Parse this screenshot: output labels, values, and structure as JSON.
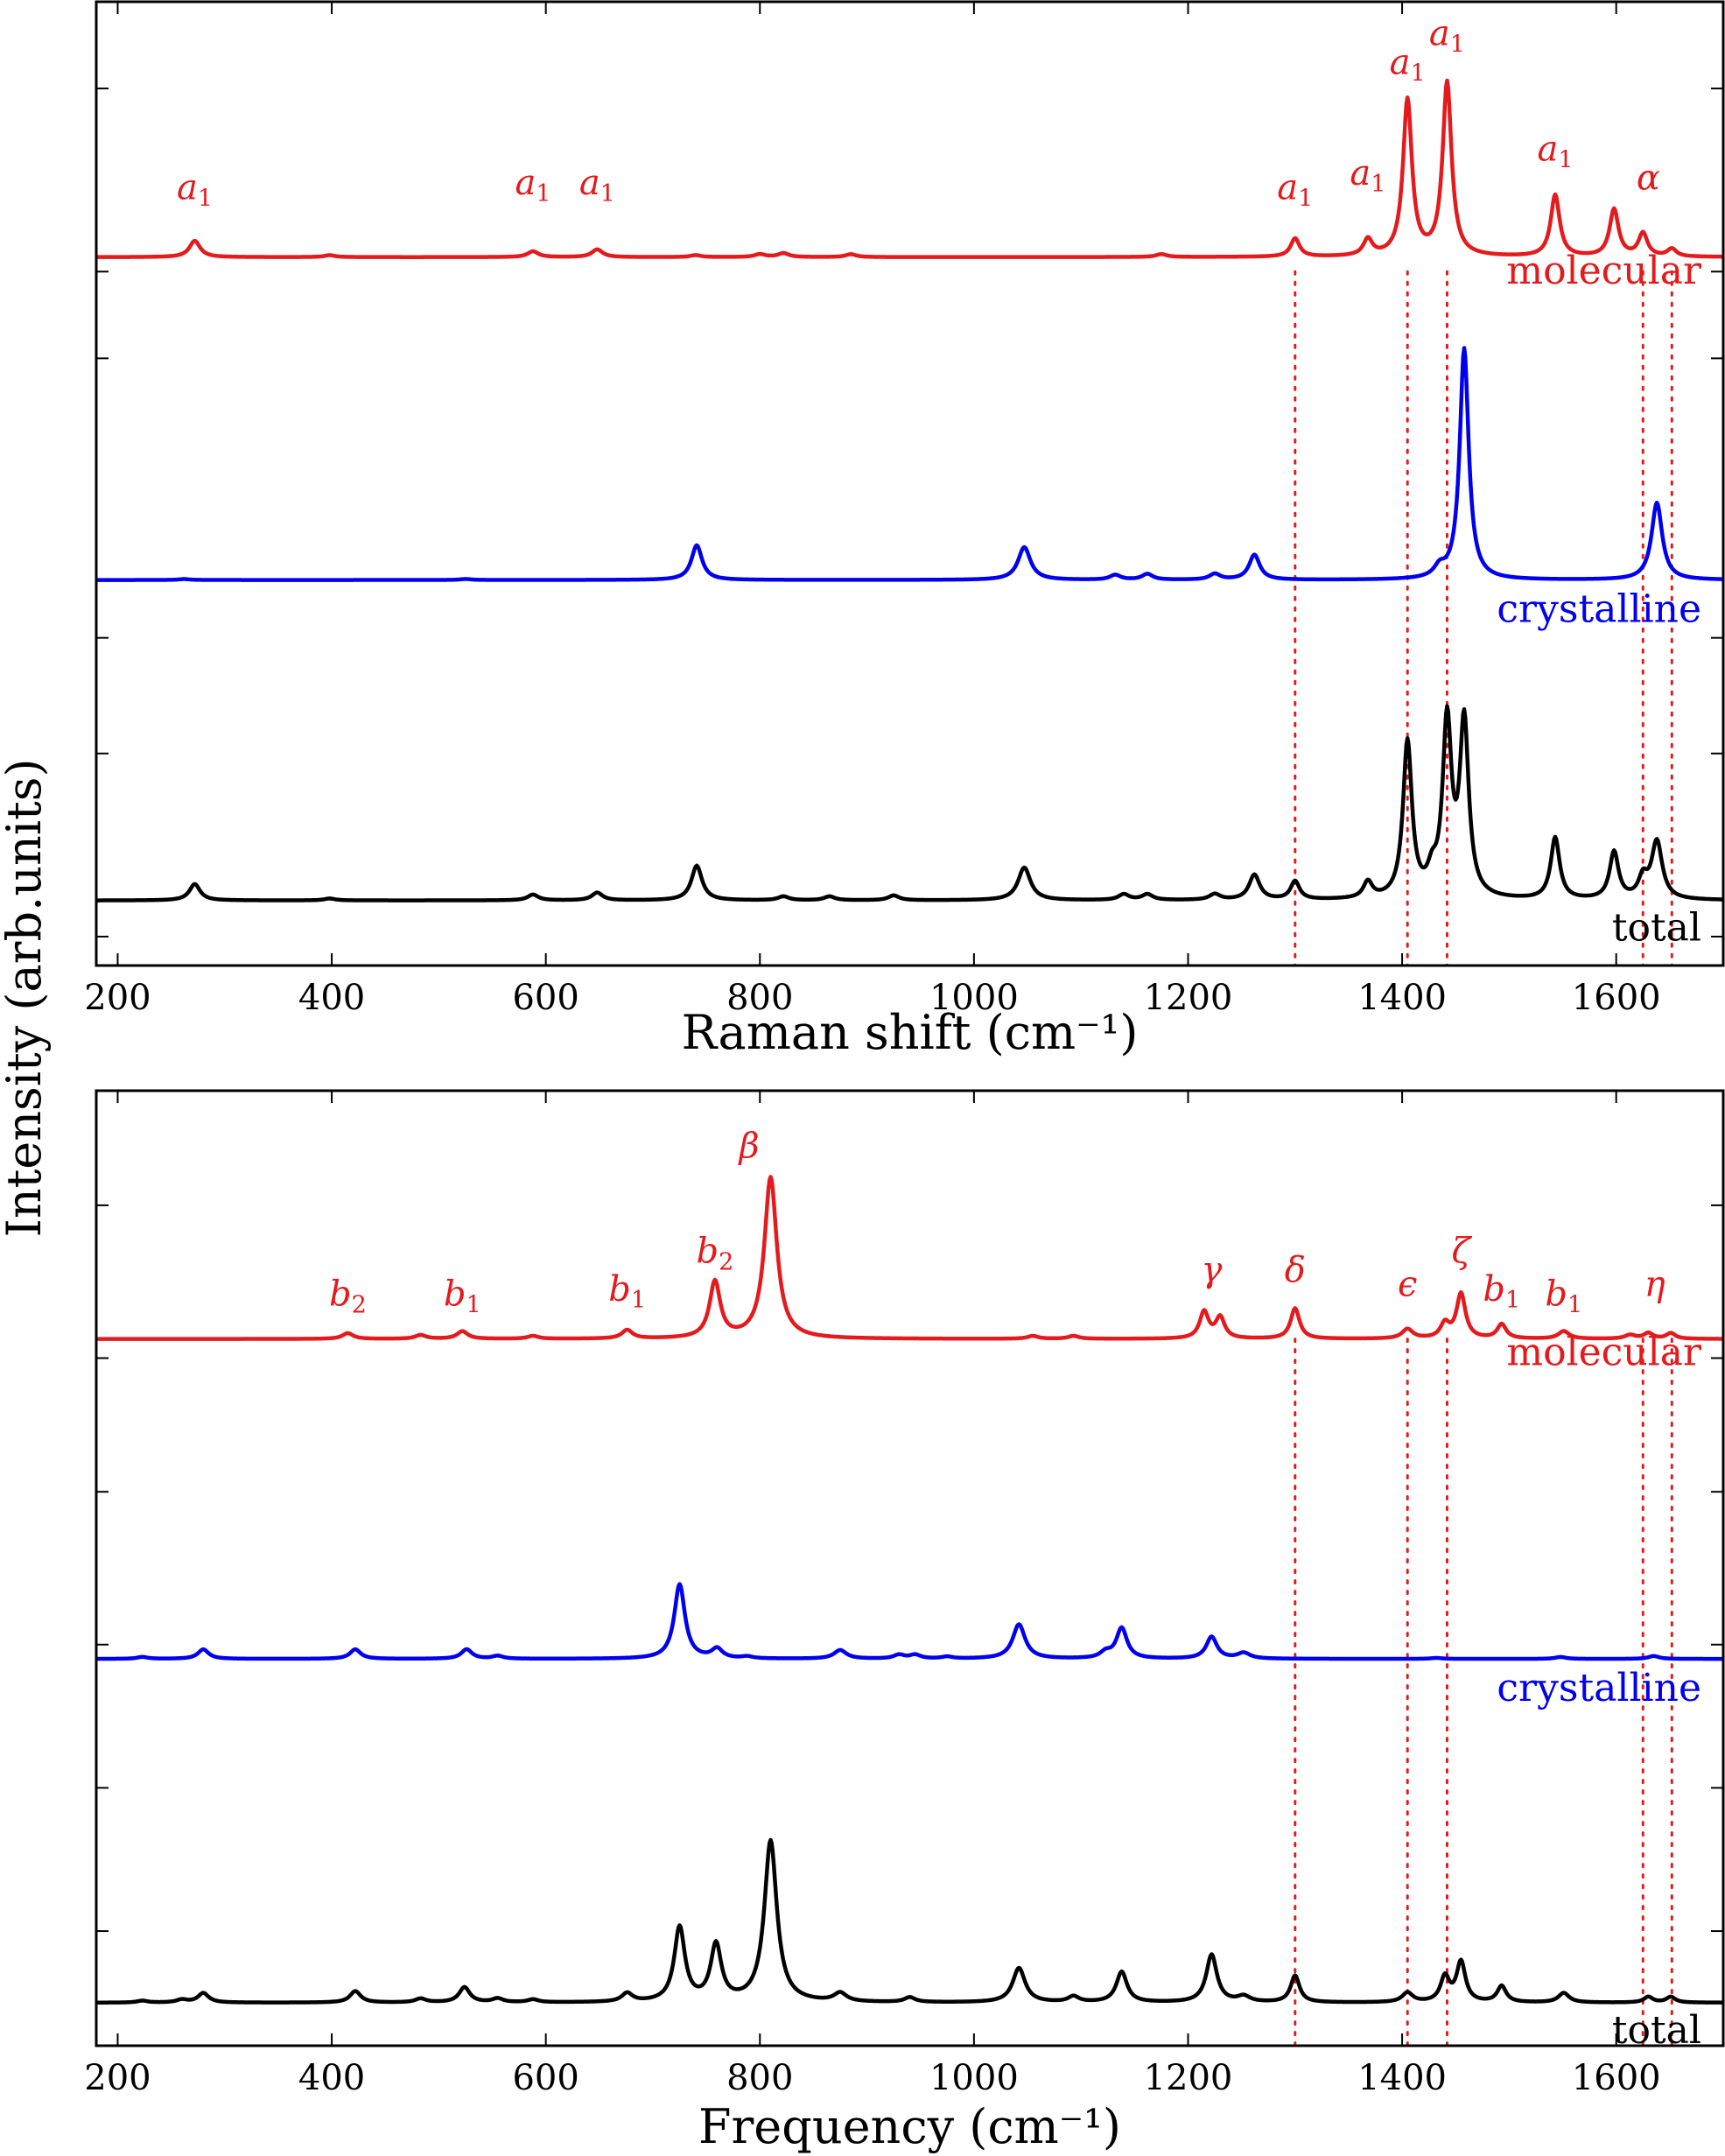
{
  "chart_data": [
    {
      "type": "line",
      "xlabel": "Raman shift (cm⁻¹)",
      "ylabel": "Intensity (arb.units)",
      "xlim": [
        180,
        1700
      ],
      "ylim": [
        0,
        1
      ],
      "x_ticks": [
        200,
        400,
        600,
        800,
        1000,
        1200,
        1400,
        1600
      ],
      "x_tick_labels": [
        "200",
        "400",
        "600",
        "800",
        "1000",
        "1200",
        "1400",
        "1600"
      ],
      "y_ticks": [
        0.03,
        0.22,
        0.34,
        0.63,
        0.72,
        0.91
      ],
      "guide_lines_x": [
        1300,
        1405,
        1442,
        1625,
        1652
      ],
      "series": [
        {
          "name": "molecular",
          "color": "#e41a1c",
          "baseline": 0.735,
          "peaks": [
            {
              "x": 272,
              "h": 0.017,
              "w": 6
            },
            {
              "x": 398,
              "h": 0.002,
              "w": 6
            },
            {
              "x": 588,
              "h": 0.006,
              "w": 6
            },
            {
              "x": 648,
              "h": 0.008,
              "w": 6
            },
            {
              "x": 740,
              "h": 0.002,
              "w": 6
            },
            {
              "x": 800,
              "h": 0.003,
              "w": 6
            },
            {
              "x": 822,
              "h": 0.004,
              "w": 6
            },
            {
              "x": 885,
              "h": 0.003,
              "w": 6
            },
            {
              "x": 1175,
              "h": 0.003,
              "w": 6
            },
            {
              "x": 1300,
              "h": 0.019,
              "w": 5
            },
            {
              "x": 1368,
              "h": 0.017,
              "w": 5
            },
            {
              "x": 1405,
              "h": 0.162,
              "w": 5
            },
            {
              "x": 1442,
              "h": 0.18,
              "w": 5
            },
            {
              "x": 1543,
              "h": 0.064,
              "w": 5
            },
            {
              "x": 1598,
              "h": 0.049,
              "w": 5
            },
            {
              "x": 1625,
              "h": 0.024,
              "w": 5
            },
            {
              "x": 1652,
              "h": 0.008,
              "w": 5
            }
          ]
        },
        {
          "name": "crystalline",
          "color": "#0000ee",
          "baseline": 0.4,
          "peaks": [
            {
              "x": 262,
              "h": 0.001,
              "w": 6
            },
            {
              "x": 525,
              "h": 0.001,
              "w": 6
            },
            {
              "x": 741,
              "h": 0.036,
              "w": 6
            },
            {
              "x": 1047,
              "h": 0.034,
              "w": 7
            },
            {
              "x": 1132,
              "h": 0.005,
              "w": 6
            },
            {
              "x": 1162,
              "h": 0.006,
              "w": 6
            },
            {
              "x": 1225,
              "h": 0.006,
              "w": 6
            },
            {
              "x": 1262,
              "h": 0.026,
              "w": 6
            },
            {
              "x": 1435,
              "h": 0.01,
              "w": 6
            },
            {
              "x": 1458,
              "h": 0.24,
              "w": 5
            },
            {
              "x": 1638,
              "h": 0.08,
              "w": 6
            }
          ]
        },
        {
          "name": "total",
          "color": "#000000",
          "baseline": 0.0675,
          "peaks": [
            {
              "x": 272,
              "h": 0.017,
              "w": 6
            },
            {
              "x": 398,
              "h": 0.002,
              "w": 6
            },
            {
              "x": 588,
              "h": 0.006,
              "w": 6
            },
            {
              "x": 648,
              "h": 0.008,
              "w": 6
            },
            {
              "x": 741,
              "h": 0.036,
              "w": 6
            },
            {
              "x": 822,
              "h": 0.004,
              "w": 6
            },
            {
              "x": 865,
              "h": 0.004,
              "w": 6
            },
            {
              "x": 925,
              "h": 0.005,
              "w": 6
            },
            {
              "x": 1047,
              "h": 0.034,
              "w": 7
            },
            {
              "x": 1140,
              "h": 0.006,
              "w": 6
            },
            {
              "x": 1162,
              "h": 0.006,
              "w": 6
            },
            {
              "x": 1225,
              "h": 0.006,
              "w": 6
            },
            {
              "x": 1262,
              "h": 0.026,
              "w": 6
            },
            {
              "x": 1300,
              "h": 0.019,
              "w": 5
            },
            {
              "x": 1368,
              "h": 0.017,
              "w": 5
            },
            {
              "x": 1405,
              "h": 0.162,
              "w": 5
            },
            {
              "x": 1428,
              "h": 0.02,
              "w": 5
            },
            {
              "x": 1442,
              "h": 0.18,
              "w": 5
            },
            {
              "x": 1458,
              "h": 0.18,
              "w": 5
            },
            {
              "x": 1543,
              "h": 0.064,
              "w": 5
            },
            {
              "x": 1598,
              "h": 0.049,
              "w": 5
            },
            {
              "x": 1625,
              "h": 0.02,
              "w": 5
            },
            {
              "x": 1638,
              "h": 0.06,
              "w": 6
            }
          ]
        }
      ],
      "annotations": [
        {
          "text": "a",
          "sub": "1",
          "x": 272,
          "y": 0.795
        },
        {
          "text": "a",
          "sub": "1",
          "x": 588,
          "y": 0.8
        },
        {
          "text": "a",
          "sub": "1",
          "x": 648,
          "y": 0.8
        },
        {
          "text": "a",
          "sub": "1",
          "x": 1300,
          "y": 0.795
        },
        {
          "text": "a",
          "sub": "1",
          "x": 1368,
          "y": 0.81
        },
        {
          "text": "a",
          "sub": "1",
          "x": 1405,
          "y": 0.925
        },
        {
          "text": "a",
          "sub": "1",
          "x": 1442,
          "y": 0.955
        },
        {
          "text": "a",
          "sub": "1",
          "x": 1543,
          "y": 0.835
        },
        {
          "text": "α",
          "x": 1630,
          "y": 0.805
        }
      ]
    },
    {
      "type": "line",
      "xlabel": "Frequency (cm⁻¹)",
      "xlim": [
        180,
        1700
      ],
      "ylim": [
        0,
        1
      ],
      "x_ticks": [
        200,
        400,
        600,
        800,
        1000,
        1200,
        1400,
        1600
      ],
      "x_tick_labels": [
        "200",
        "400",
        "600",
        "800",
        "1000",
        "1200",
        "1400",
        "1600"
      ],
      "y_ticks": [
        0.12,
        0.27,
        0.42,
        0.58,
        0.72,
        0.88
      ],
      "guide_lines_x": [
        1300,
        1405,
        1442,
        1625,
        1652
      ],
      "series": [
        {
          "name": "molecular",
          "color": "#e41a1c",
          "baseline": 0.74,
          "peaks": [
            {
              "x": 415,
              "h": 0.006,
              "w": 6
            },
            {
              "x": 483,
              "h": 0.004,
              "w": 6
            },
            {
              "x": 522,
              "h": 0.008,
              "w": 6
            },
            {
              "x": 588,
              "h": 0.003,
              "w": 6
            },
            {
              "x": 676,
              "h": 0.009,
              "w": 6
            },
            {
              "x": 758,
              "h": 0.059,
              "w": 6
            },
            {
              "x": 810,
              "h": 0.169,
              "w": 7
            },
            {
              "x": 1055,
              "h": 0.003,
              "w": 6
            },
            {
              "x": 1093,
              "h": 0.003,
              "w": 6
            },
            {
              "x": 1215,
              "h": 0.028,
              "w": 5
            },
            {
              "x": 1230,
              "h": 0.022,
              "w": 5
            },
            {
              "x": 1300,
              "h": 0.032,
              "w": 5
            },
            {
              "x": 1405,
              "h": 0.01,
              "w": 6
            },
            {
              "x": 1440,
              "h": 0.015,
              "w": 5
            },
            {
              "x": 1455,
              "h": 0.047,
              "w": 5
            },
            {
              "x": 1493,
              "h": 0.015,
              "w": 5
            },
            {
              "x": 1551,
              "h": 0.008,
              "w": 6
            },
            {
              "x": 1613,
              "h": 0.004,
              "w": 6
            },
            {
              "x": 1630,
              "h": 0.006,
              "w": 5
            },
            {
              "x": 1651,
              "h": 0.006,
              "w": 5
            }
          ]
        },
        {
          "name": "crystalline",
          "color": "#0000ee",
          "baseline": 0.405,
          "peaks": [
            {
              "x": 223,
              "h": 0.002,
              "w": 6
            },
            {
              "x": 280,
              "h": 0.01,
              "w": 6
            },
            {
              "x": 422,
              "h": 0.01,
              "w": 6
            },
            {
              "x": 526,
              "h": 0.01,
              "w": 6
            },
            {
              "x": 555,
              "h": 0.003,
              "w": 6
            },
            {
              "x": 725,
              "h": 0.078,
              "w": 6
            },
            {
              "x": 760,
              "h": 0.01,
              "w": 6
            },
            {
              "x": 788,
              "h": 0.002,
              "w": 6
            },
            {
              "x": 875,
              "h": 0.009,
              "w": 7
            },
            {
              "x": 930,
              "h": 0.004,
              "w": 6
            },
            {
              "x": 945,
              "h": 0.004,
              "w": 6
            },
            {
              "x": 975,
              "h": 0.002,
              "w": 6
            },
            {
              "x": 1042,
              "h": 0.036,
              "w": 7
            },
            {
              "x": 1123,
              "h": 0.006,
              "w": 6
            },
            {
              "x": 1138,
              "h": 0.032,
              "w": 6
            },
            {
              "x": 1222,
              "h": 0.023,
              "w": 6
            },
            {
              "x": 1252,
              "h": 0.006,
              "w": 7
            },
            {
              "x": 1432,
              "h": 0.001,
              "w": 6
            },
            {
              "x": 1548,
              "h": 0.002,
              "w": 6
            },
            {
              "x": 1635,
              "h": 0.003,
              "w": 6
            }
          ]
        },
        {
          "name": "total",
          "color": "#000000",
          "baseline": 0.045,
          "peaks": [
            {
              "x": 223,
              "h": 0.002,
              "w": 6
            },
            {
              "x": 260,
              "h": 0.003,
              "w": 6
            },
            {
              "x": 280,
              "h": 0.01,
              "w": 6
            },
            {
              "x": 422,
              "h": 0.012,
              "w": 6
            },
            {
              "x": 483,
              "h": 0.004,
              "w": 6
            },
            {
              "x": 524,
              "h": 0.016,
              "w": 6
            },
            {
              "x": 555,
              "h": 0.004,
              "w": 6
            },
            {
              "x": 588,
              "h": 0.003,
              "w": 6
            },
            {
              "x": 676,
              "h": 0.009,
              "w": 6
            },
            {
              "x": 725,
              "h": 0.078,
              "w": 6
            },
            {
              "x": 759,
              "h": 0.059,
              "w": 6
            },
            {
              "x": 810,
              "h": 0.169,
              "w": 7
            },
            {
              "x": 875,
              "h": 0.009,
              "w": 7
            },
            {
              "x": 940,
              "h": 0.005,
              "w": 6
            },
            {
              "x": 1042,
              "h": 0.036,
              "w": 7
            },
            {
              "x": 1093,
              "h": 0.006,
              "w": 6
            },
            {
              "x": 1138,
              "h": 0.032,
              "w": 6
            },
            {
              "x": 1222,
              "h": 0.05,
              "w": 6
            },
            {
              "x": 1252,
              "h": 0.006,
              "w": 7
            },
            {
              "x": 1300,
              "h": 0.028,
              "w": 5
            },
            {
              "x": 1405,
              "h": 0.01,
              "w": 6
            },
            {
              "x": 1440,
              "h": 0.026,
              "w": 5
            },
            {
              "x": 1455,
              "h": 0.042,
              "w": 5
            },
            {
              "x": 1493,
              "h": 0.017,
              "w": 5
            },
            {
              "x": 1551,
              "h": 0.01,
              "w": 6
            },
            {
              "x": 1630,
              "h": 0.006,
              "w": 5
            },
            {
              "x": 1651,
              "h": 0.006,
              "w": 5
            }
          ]
        }
      ],
      "annotations": [
        {
          "text": "b",
          "sub": "2",
          "x": 415,
          "y": 0.775
        },
        {
          "text": "b",
          "sub": "1",
          "x": 522,
          "y": 0.775
        },
        {
          "text": "b",
          "sub": "1",
          "x": 676,
          "y": 0.78
        },
        {
          "text": "b",
          "sub": "2",
          "x": 758,
          "y": 0.82
        },
        {
          "text": "β",
          "x": 790,
          "y": 0.93
        },
        {
          "text": "γ",
          "x": 1222,
          "y": 0.8
        },
        {
          "text": "δ",
          "x": 1300,
          "y": 0.8
        },
        {
          "text": "ϵ",
          "x": 1405,
          "y": 0.785
        },
        {
          "text": "ζ",
          "x": 1455,
          "y": 0.82
        },
        {
          "text": "b",
          "sub": "1",
          "x": 1493,
          "y": 0.78
        },
        {
          "text": "b",
          "sub": "1",
          "x": 1551,
          "y": 0.775
        },
        {
          "text": "η",
          "x": 1636,
          "y": 0.785
        }
      ]
    }
  ]
}
